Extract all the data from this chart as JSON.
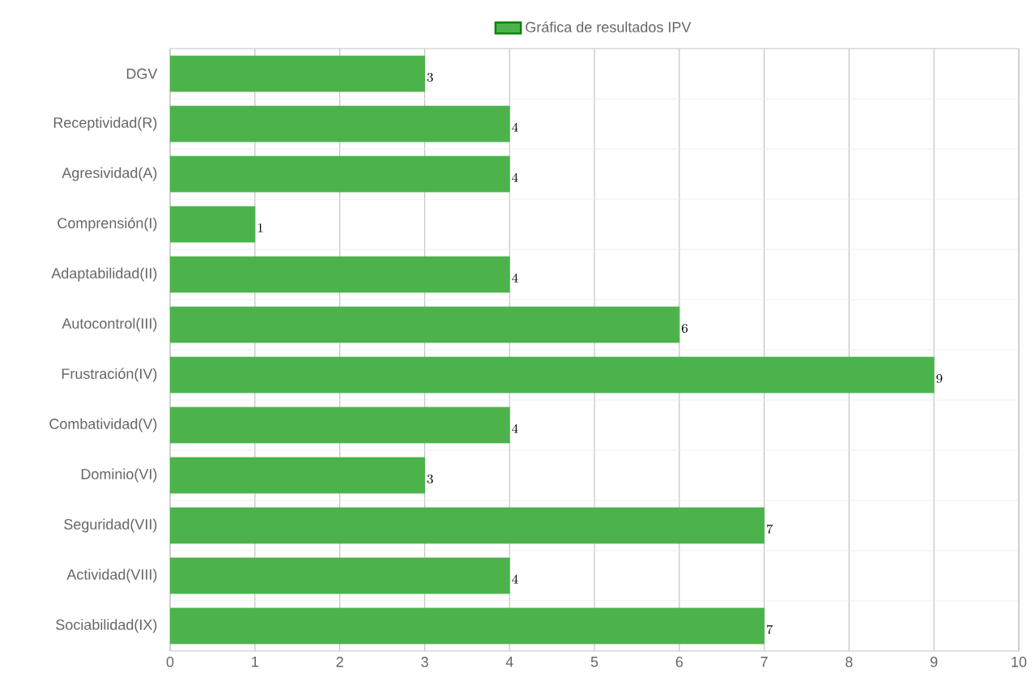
{
  "chart_data": {
    "type": "bar",
    "orientation": "horizontal",
    "categories": [
      "DGV",
      "Receptividad(R)",
      "Agresividad(A)",
      "Comprensión(I)",
      "Adaptabilidad(II)",
      "Autocontrol(III)",
      "Frustración(IV)",
      "Combatividad(V)",
      "Dominio(VI)",
      "Seguridad(VII)",
      "Actividad(VIII)",
      "Sociabilidad(IX)"
    ],
    "series": [
      {
        "name": "Gráfica de resultados IPV",
        "color": "#4cb34c",
        "values": [
          3,
          4,
          4,
          1,
          4,
          6,
          9,
          4,
          3,
          7,
          4,
          7
        ]
      }
    ],
    "xlim": [
      0,
      10
    ],
    "xticks": [
      0,
      1,
      2,
      3,
      4,
      5,
      6,
      7,
      8,
      9,
      10
    ],
    "grid": true,
    "legend": "top",
    "data_labels": true
  }
}
